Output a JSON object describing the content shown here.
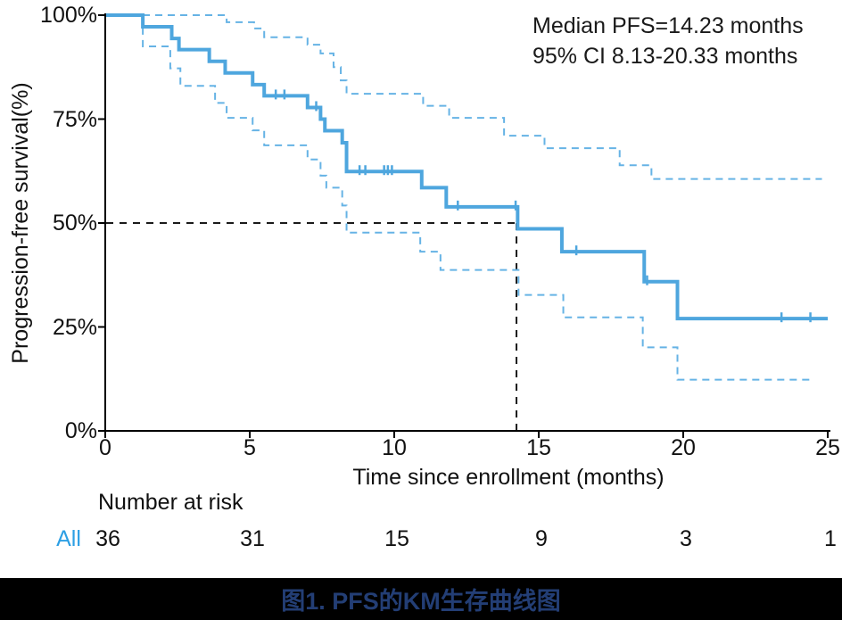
{
  "caption": "图1. PFS的KM生存曲线图",
  "colors": {
    "curve": "#4EA6DE",
    "ci_band": "#66B3E5",
    "reference_dash": "#1a1a1a",
    "axis": "#000000",
    "risk_group_label": "#2D9FE4",
    "caption_bg": "#000000",
    "caption_text": "#233E75"
  },
  "chart_data": {
    "type": "line",
    "subtype": "kaplan-meier-step",
    "annotation_lines": [
      "Median PFS=14.23 months",
      "95% CI 8.13-20.33 months"
    ],
    "xlabel": "Time since enrollment (months)",
    "ylabel": "Progression-free survival(%)",
    "xlim": [
      0,
      25
    ],
    "ylim": [
      0,
      100
    ],
    "x_ticks": [
      0,
      5,
      10,
      15,
      20,
      25
    ],
    "y_ticks": [
      {
        "value": 100,
        "label": "100%"
      },
      {
        "value": 75,
        "label": "75%"
      },
      {
        "value": 50,
        "label": "50%"
      },
      {
        "value": 25,
        "label": "25%"
      },
      {
        "value": 0,
        "label": "0%"
      }
    ],
    "grid": false,
    "legend_position": "none",
    "median": {
      "time_months": 14.23,
      "survival_pct": 50
    },
    "series": [
      {
        "name": "PFS estimate (All)",
        "style": "solid",
        "width": 4,
        "start": [
          0,
          100
        ],
        "end_time": 25.0,
        "steps": [
          [
            1.3,
            97.2
          ],
          [
            2.3,
            94.4
          ],
          [
            2.55,
            91.7
          ],
          [
            3.6,
            88.9
          ],
          [
            4.15,
            86.1
          ],
          [
            5.1,
            83.3
          ],
          [
            5.5,
            80.6
          ],
          [
            7.0,
            77.8
          ],
          [
            7.45,
            75.0
          ],
          [
            7.6,
            72.2
          ],
          [
            8.2,
            69.3
          ],
          [
            8.35,
            62.4
          ],
          [
            10.95,
            58.5
          ],
          [
            11.8,
            53.9
          ],
          [
            14.27,
            48.6
          ],
          [
            15.8,
            43.1
          ],
          [
            18.65,
            35.9
          ],
          [
            19.8,
            27.0
          ]
        ]
      },
      {
        "name": "95% CI upper",
        "style": "dashed",
        "width": 2,
        "start": [
          0,
          100
        ],
        "end_time": 24.8,
        "steps": [
          [
            4.2,
            98.3
          ],
          [
            5.15,
            96.8
          ],
          [
            5.5,
            94.7
          ],
          [
            7.0,
            92.9
          ],
          [
            7.45,
            90.8
          ],
          [
            7.9,
            87.5
          ],
          [
            8.15,
            84.3
          ],
          [
            8.35,
            81.1
          ],
          [
            11.0,
            78.2
          ],
          [
            11.9,
            75.3
          ],
          [
            13.8,
            71.0
          ],
          [
            15.2,
            68.0
          ],
          [
            17.8,
            63.9
          ],
          [
            18.9,
            60.6
          ]
        ]
      },
      {
        "name": "95% CI lower",
        "style": "dashed",
        "width": 2,
        "start": [
          0,
          100
        ],
        "end_time": 24.4,
        "steps": [
          [
            1.3,
            92.5
          ],
          [
            2.25,
            87.2
          ],
          [
            2.6,
            83.0
          ],
          [
            3.8,
            78.9
          ],
          [
            4.2,
            75.3
          ],
          [
            5.1,
            72.3
          ],
          [
            5.5,
            68.7
          ],
          [
            7.0,
            65.3
          ],
          [
            7.45,
            61.4
          ],
          [
            7.65,
            58.5
          ],
          [
            8.2,
            54.2
          ],
          [
            8.35,
            47.7
          ],
          [
            10.9,
            43.1
          ],
          [
            11.6,
            38.7
          ],
          [
            14.3,
            32.7
          ],
          [
            15.85,
            27.3
          ],
          [
            18.6,
            20.1
          ],
          [
            19.8,
            12.3
          ]
        ]
      }
    ],
    "censor_marks": [
      [
        5.9,
        80.6
      ],
      [
        6.2,
        80.6
      ],
      [
        7.3,
        77.8
      ],
      [
        8.8,
        62.4
      ],
      [
        9.0,
        62.4
      ],
      [
        9.65,
        62.4
      ],
      [
        9.78,
        62.4
      ],
      [
        9.92,
        62.4
      ],
      [
        12.2,
        53.9
      ],
      [
        14.2,
        53.9
      ],
      [
        16.3,
        43.1
      ],
      [
        18.75,
        35.9
      ],
      [
        23.4,
        27.0
      ],
      [
        24.4,
        27.0
      ]
    ],
    "risk_table": {
      "header": "Number at risk",
      "group_label": "All",
      "times": [
        0,
        5,
        10,
        15,
        20,
        25
      ],
      "counts": [
        36,
        31,
        15,
        9,
        3,
        1
      ]
    }
  }
}
